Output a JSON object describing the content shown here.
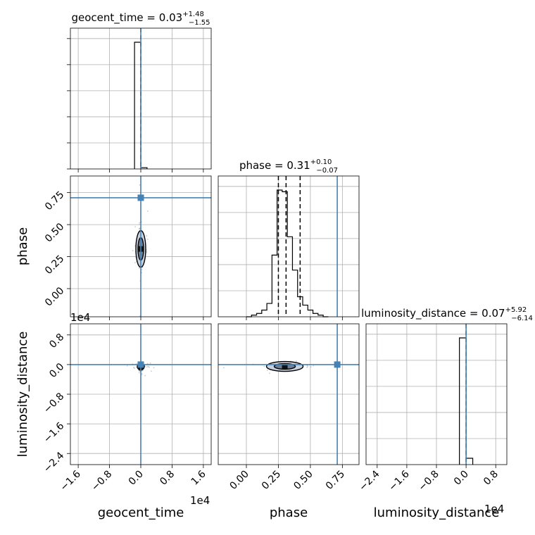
{
  "chart_data": {
    "type": "corner",
    "parameters": [
      "geocent_time",
      "phase",
      "luminosity_distance"
    ],
    "axis_labels": {
      "geocent_time": "geocent_time",
      "phase": "phase",
      "luminosity_distance": "luminosity_distance"
    },
    "titles": {
      "geocent_time": {
        "prefix": "geocent_time = ",
        "median": "0.03",
        "plus": "+1.48",
        "minus": "−1.55"
      },
      "phase": {
        "prefix": "phase = ",
        "median": "0.31",
        "plus": "+0.10",
        "minus": "−0.07"
      },
      "luminosity_distance": {
        "prefix": "luminosity_distance = ",
        "median": "0.07",
        "plus": "+5.92",
        "minus": "−6.14"
      }
    },
    "offset_text": "1e4",
    "ranges": {
      "geocent_time": [
        -1.8,
        1.8
      ],
      "phase": [
        -0.22,
        0.88
      ],
      "luminosity_distance": [
        -2.7,
        1.1
      ]
    },
    "ticks": {
      "geocent_time": {
        "values": [
          -1.6,
          -0.8,
          0.0,
          0.8,
          1.6
        ],
        "labels": [
          "−1.6",
          "−0.8",
          "0.0",
          "0.8",
          "1.6"
        ]
      },
      "phase": {
        "values": [
          0.0,
          0.25,
          0.5,
          0.75
        ],
        "labels": [
          "0.00",
          "0.25",
          "0.50",
          "0.75"
        ]
      },
      "luminosity_distance": {
        "values": [
          -2.4,
          -1.6,
          -0.8,
          0.0,
          0.8
        ],
        "labels": [
          "−2.4",
          "−1.6",
          "−0.8",
          "0.0",
          "0.8"
        ]
      }
    },
    "truths": {
      "geocent_time": 0.0,
      "phase": 0.71,
      "luminosity_distance": 0.0
    },
    "quantiles": {
      "geocent_time": [
        0.0
      ],
      "phase": [
        0.25,
        0.31,
        0.42
      ],
      "luminosity_distance": [
        0.0
      ]
    },
    "histograms": {
      "geocent_time": {
        "bin_edges": [
          -0.16,
          0.0,
          0.16
        ],
        "heights": [
          1.0,
          0.01
        ]
      },
      "phase": {
        "bin_edges": [
          0.0,
          0.04,
          0.08,
          0.12,
          0.16,
          0.2,
          0.24,
          0.28,
          0.32,
          0.36,
          0.4,
          0.44,
          0.48,
          0.52,
          0.56,
          0.6,
          0.64
        ],
        "heights": [
          0.0,
          0.01,
          0.02,
          0.04,
          0.08,
          0.37,
          0.76,
          0.75,
          0.48,
          0.28,
          0.12,
          0.07,
          0.04,
          0.02,
          0.01,
          0.0
        ]
      },
      "luminosity_distance": {
        "bin_edges": [
          -0.18,
          0.0,
          0.18
        ],
        "heights": [
          1.0,
          0.05
        ]
      }
    },
    "grid": true,
    "grid_rows": 3,
    "grid_cols": 3
  }
}
